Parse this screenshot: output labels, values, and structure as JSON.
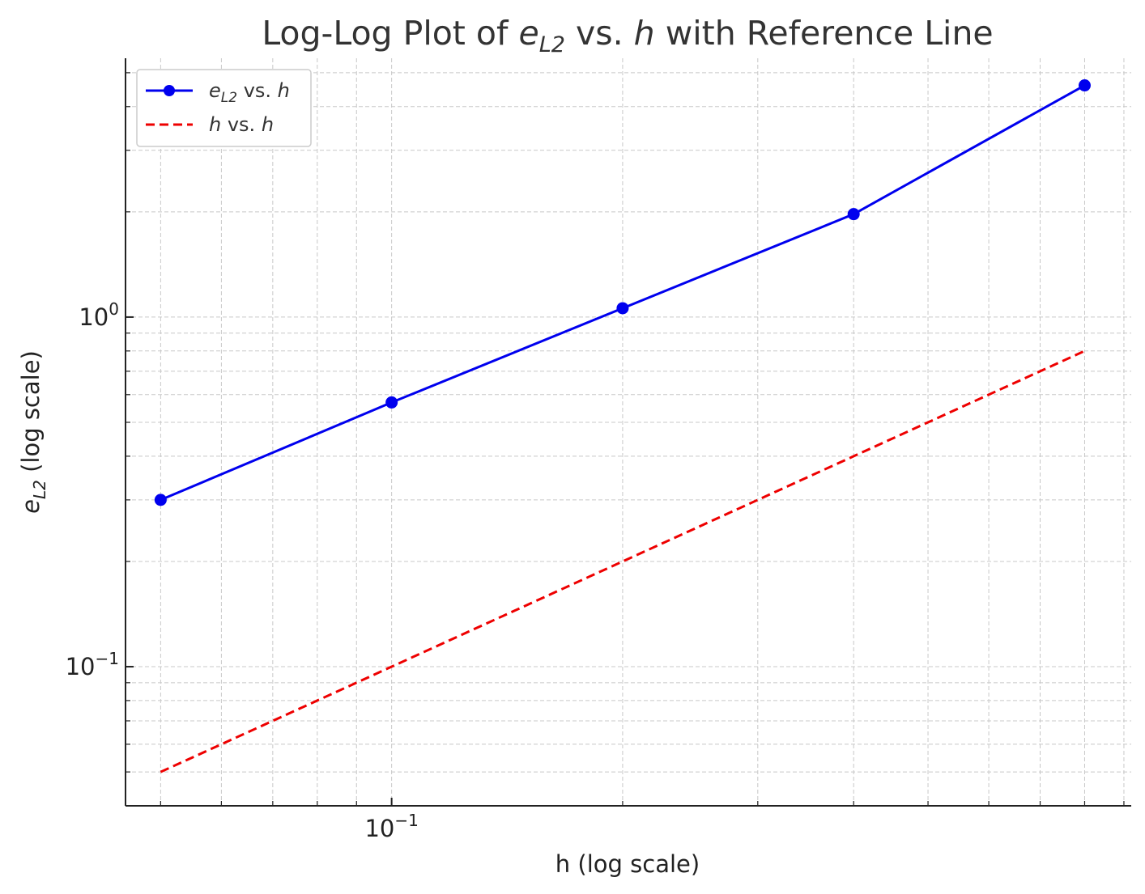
{
  "chart_data": {
    "type": "line",
    "title_prefix": "Log-Log Plot of ",
    "title_var": "e",
    "title_sub": "L2",
    "title_mid": " vs. ",
    "title_h": "h",
    "title_suffix": " with Reference Line",
    "xlabel": "h (log scale)",
    "ylabel_var": "e",
    "ylabel_sub": "L2",
    "ylabel_suffix": " (log scale)",
    "xscale": "log",
    "yscale": "log",
    "xlim": [
      0.045,
      0.92
    ],
    "ylim": [
      0.04,
      5.5
    ],
    "x_ticks": [
      {
        "value": 0.1,
        "base": "10",
        "exp": "−1"
      }
    ],
    "y_ticks": [
      {
        "value": 0.1,
        "base": "10",
        "exp": "−1"
      },
      {
        "value": 1,
        "base": "10",
        "exp": "0"
      }
    ],
    "grid": true,
    "legend_position": "top-left",
    "series": [
      {
        "name_var": "e",
        "name_sub": "L2",
        "name_mid": " vs. ",
        "name_h": "h",
        "color": "#0000ee",
        "style": "solid",
        "marker": "circle",
        "x": [
          0.05,
          0.1,
          0.2,
          0.4,
          0.8
        ],
        "y": [
          0.3,
          0.57,
          1.06,
          1.97,
          4.6
        ]
      },
      {
        "name_h": "h",
        "name_mid": " vs. ",
        "name_h2": "h",
        "color": "#ee0000",
        "style": "dashed",
        "marker": "none",
        "x": [
          0.05,
          0.1,
          0.2,
          0.4,
          0.8
        ],
        "y": [
          0.05,
          0.1,
          0.2,
          0.4,
          0.8
        ]
      }
    ]
  }
}
